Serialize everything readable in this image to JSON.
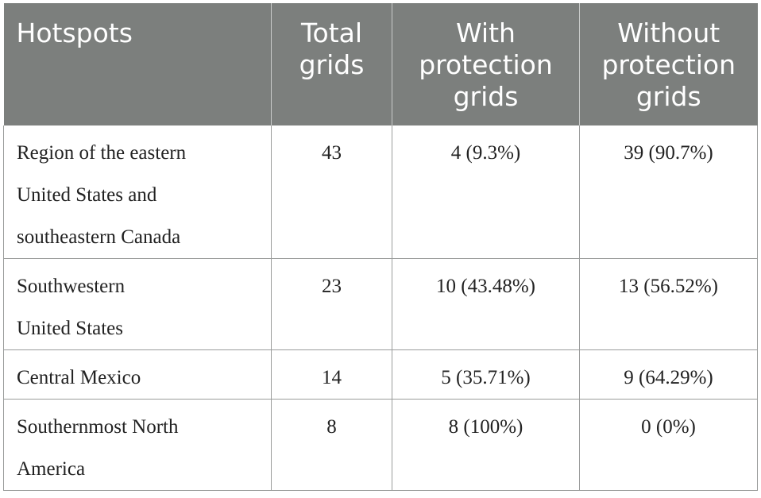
{
  "table": {
    "headers": [
      "Hotspots",
      "Total grids",
      "With protection grids",
      "Without protection grids"
    ],
    "header_lines": [
      [
        "Hotspots"
      ],
      [
        "Total",
        "grids"
      ],
      [
        "With",
        "protection",
        "grids"
      ],
      [
        "Without",
        "protection",
        "grids"
      ]
    ],
    "rows": [
      {
        "hotspot_lines": [
          "Region of the eastern",
          "United States and",
          "southeastern Canada"
        ],
        "total": "43",
        "with": "4 (9.3%)",
        "without": "39 (90.7%)"
      },
      {
        "hotspot_lines": [
          "Southwestern",
          "United States"
        ],
        "total": "23",
        "with": "10 (43.48%)",
        "without": "13 (56.52%)"
      },
      {
        "hotspot_lines": [
          "Central Mexico"
        ],
        "total": "14",
        "with": "5 (35.71%)",
        "without": "9 (64.29%)"
      },
      {
        "hotspot_lines": [
          "Southernmost North",
          "America"
        ],
        "total": "8",
        "with": "8 (100%)",
        "without": "0 (0%)"
      }
    ]
  },
  "colors": {
    "header_bg": "#7c7f7d",
    "header_text": "#ffffff",
    "border": "#9a9c9b",
    "body_text": "#222222"
  }
}
